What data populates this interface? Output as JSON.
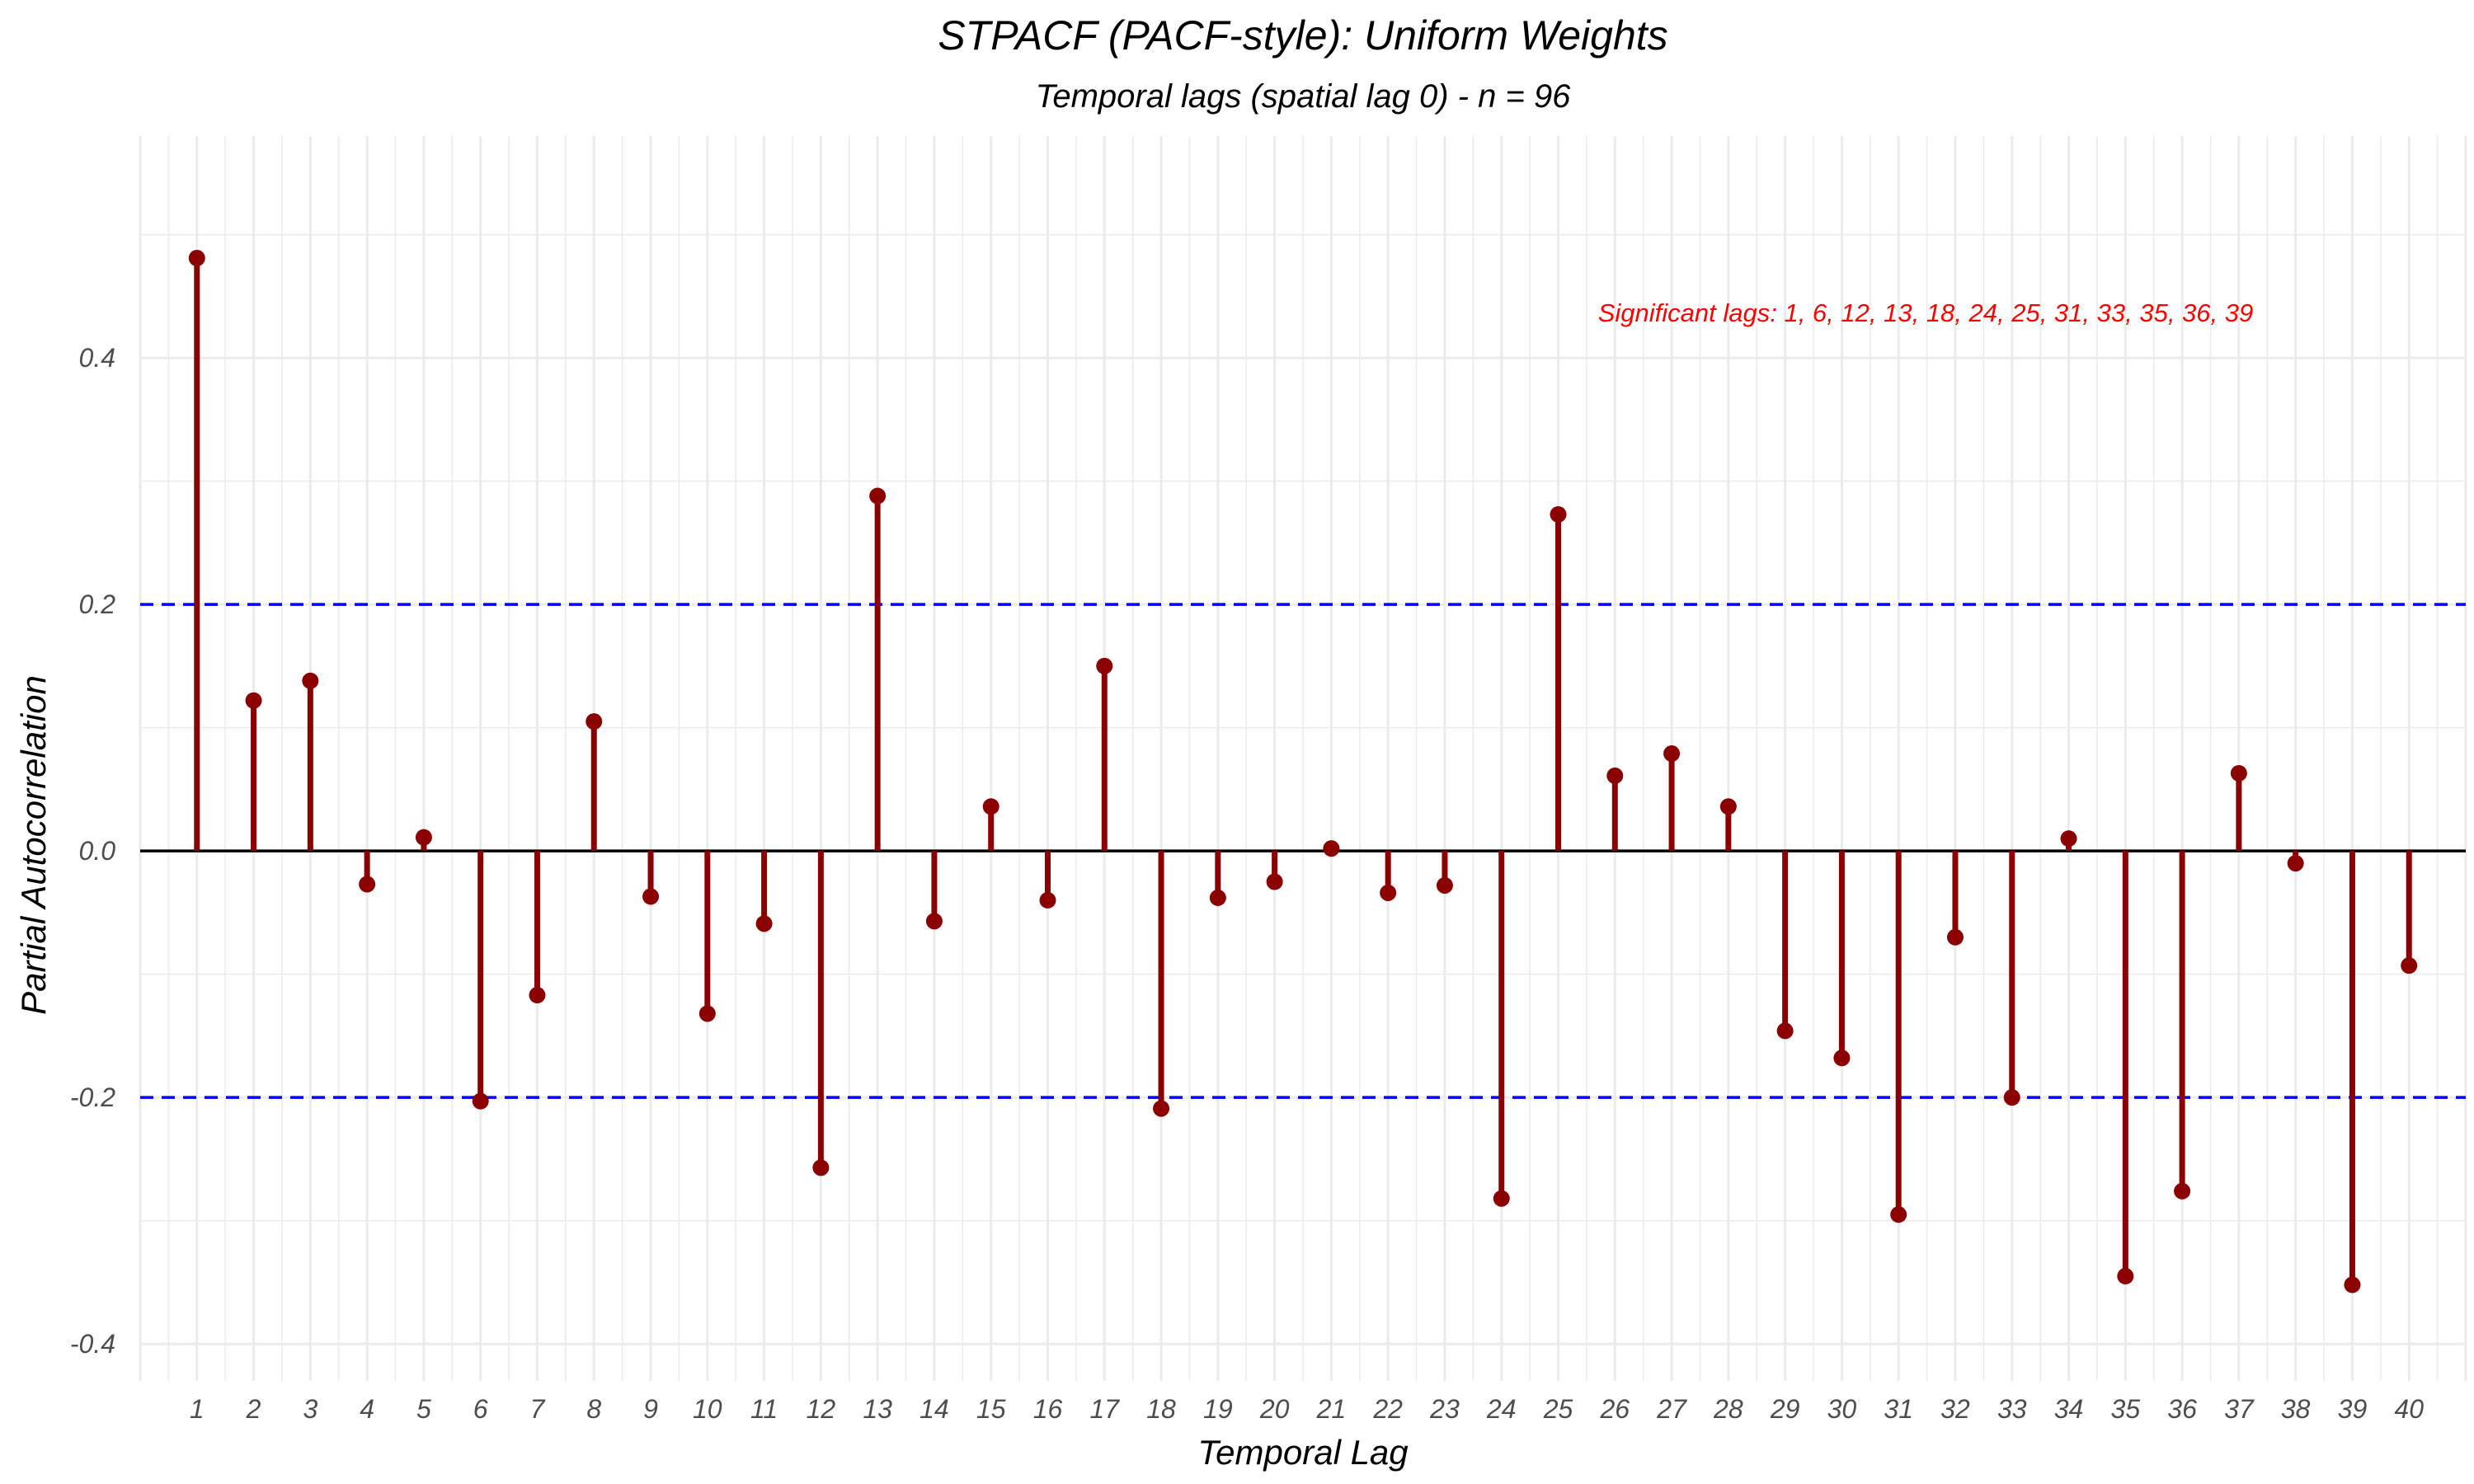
{
  "chart_data": {
    "type": "bar",
    "style": "lollipop",
    "title": "STPACF (PACF-style): Uniform Weights",
    "subtitle": "Temporal lags (spatial lag 0) - n = 96",
    "xlabel": "Temporal Lag",
    "ylabel": "Partial Autocorrelation",
    "x": [
      1,
      2,
      3,
      4,
      5,
      6,
      7,
      8,
      9,
      10,
      11,
      12,
      13,
      14,
      15,
      16,
      17,
      18,
      19,
      20,
      21,
      22,
      23,
      24,
      25,
      26,
      27,
      28,
      29,
      30,
      31,
      32,
      33,
      34,
      35,
      36,
      37,
      38,
      39,
      40
    ],
    "values": [
      0.481,
      0.122,
      0.138,
      -0.027,
      0.011,
      -0.203,
      -0.117,
      0.105,
      -0.037,
      -0.132,
      -0.059,
      -0.257,
      0.288,
      -0.057,
      0.036,
      -0.04,
      0.15,
      -0.209,
      -0.038,
      -0.025,
      0.002,
      -0.034,
      -0.028,
      -0.282,
      0.273,
      0.061,
      0.079,
      0.036,
      -0.146,
      -0.168,
      -0.295,
      -0.07,
      -0.2,
      0.01,
      -0.345,
      -0.276,
      0.063,
      -0.01,
      -0.352,
      -0.093
    ],
    "xlim": [
      0,
      41
    ],
    "ylim": [
      -0.43,
      0.58
    ],
    "yticks": [
      -0.4,
      -0.2,
      0.0,
      0.2,
      0.4
    ],
    "ytick_labels": [
      "-0.4",
      "-0.2",
      "0.0",
      "0.2",
      "0.4"
    ],
    "confidence_bounds": [
      0.2,
      -0.2
    ],
    "zero_line": 0,
    "annotation": "Significant lags: 1, 6, 12, 13, 18, 24, 25, 31, 33, 35, 36, 39",
    "grid": true,
    "legend": "none",
    "colors": {
      "stem": "#8b0000",
      "bound_line": "#0000ff",
      "zero_line": "#000000",
      "grid": "#ebebeb",
      "annotation": "#ff0000"
    }
  }
}
